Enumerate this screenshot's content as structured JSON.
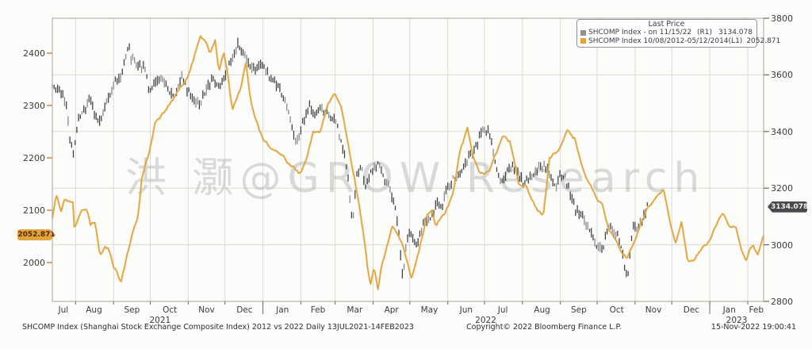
{
  "watermark": {
    "text": "洪 灏@GROW Research"
  },
  "legend": {
    "title": "Last Price",
    "series": [
      {
        "label": "SHCOMP Index - on 11/15/22",
        "axis": "(R1)",
        "value": "3134.078",
        "swatch": "#8f8f96"
      },
      {
        "label": "SHCOMP Index 10/08/2012-05/12/2014",
        "axis": "(L1)",
        "value": "2052.871",
        "swatch": "#e2a33a"
      }
    ]
  },
  "axes": {
    "left": {
      "ticks": [
        "2400",
        "2300",
        "2200",
        "2100",
        "2000"
      ],
      "tick_values": [
        2400,
        2300,
        2200,
        2100,
        2000
      ],
      "badge": "2052.871",
      "badge_value": 2052.871
    },
    "right": {
      "ticks": [
        "3800",
        "3600",
        "3400",
        "3200",
        "3000",
        "2800"
      ],
      "tick_values": [
        3800,
        3600,
        3400,
        3200,
        3000,
        2800
      ],
      "badge": "3134.078",
      "badge_value": 3134.078
    },
    "x": {
      "month_labels": [
        {
          "label": "Jul",
          "t": 9
        },
        {
          "label": "Aug",
          "t": 34
        },
        {
          "label": "Sep",
          "t": 65
        },
        {
          "label": "Oct",
          "t": 96
        },
        {
          "label": "Nov",
          "t": 126
        },
        {
          "label": "Dec",
          "t": 157
        },
        {
          "label": "Jan",
          "t": 188
        },
        {
          "label": "Feb",
          "t": 217
        },
        {
          "label": "Mar",
          "t": 247
        },
        {
          "label": "Apr",
          "t": 277
        },
        {
          "label": "May",
          "t": 308
        },
        {
          "label": "Jun",
          "t": 338
        },
        {
          "label": "Jul",
          "t": 368
        },
        {
          "label": "Aug",
          "t": 400
        },
        {
          "label": "Sep",
          "t": 430
        },
        {
          "label": "Oct",
          "t": 461
        },
        {
          "label": "Nov",
          "t": 491
        },
        {
          "label": "Dec",
          "t": 522
        },
        {
          "label": "Jan",
          "t": 553
        },
        {
          "label": "Feb",
          "t": 575
        }
      ],
      "year_labels": [
        {
          "label": "2021",
          "t": 88
        },
        {
          "label": "2022",
          "t": 354
        },
        {
          "label": "2023",
          "t": 559
        }
      ],
      "year_separators": [
        172,
        537
      ],
      "month_ticks": [
        19,
        50,
        80,
        111,
        141,
        172,
        203,
        231,
        262,
        292,
        323,
        353,
        384,
        415,
        445,
        476,
        506,
        537,
        568
      ]
    }
  },
  "footer": {
    "left": "SHCOMP Index (Shanghai Stock Exchange Composite Index) 2012 vs 2022  Daily 13JUL2021-14FEB2023",
    "copyright": "Copyright© 2022 Bloomberg Finance L.P.",
    "datetime": "15-Nov-2022 19:00:41"
  },
  "colors": {
    "grid": "#dadad6",
    "border": "#a3a3a0",
    "axis_tick": "#6b6b68",
    "left_tick": "#c8862e",
    "series_2022": "#3d3d42",
    "series_2022_light": "#86868c",
    "series_2012": "#dda23c",
    "series_2012_halo": "#f0c777",
    "watermark": "#a9a9a9"
  },
  "chart_data": {
    "type": "line",
    "title": "SHCOMP Index (Shanghai Stock Exchange Composite Index) 2012 vs 2022",
    "x_axis": {
      "start": "13JUL2021",
      "end": "14FEB2023",
      "total_days": 581
    },
    "right_axis": {
      "range": [
        2800,
        3800
      ],
      "ticks": [
        2800,
        3000,
        3200,
        3400,
        3600,
        3800
      ]
    },
    "left_axis": {
      "range": [
        1925.8,
        2466.7
      ],
      "ticks": [
        2000,
        2100,
        2200,
        2300,
        2400
      ]
    },
    "series": [
      {
        "name": "SHCOMP Index - on 11/15/22",
        "axis": "R1",
        "style": "ohlc_bars",
        "last_price": 3134.078,
        "end_day": 486,
        "points": [
          [
            0,
            3566
          ],
          [
            8,
            3540
          ],
          [
            12,
            3480
          ],
          [
            14,
            3381
          ],
          [
            15,
            3362
          ],
          [
            17,
            3320
          ],
          [
            21,
            3447
          ],
          [
            27,
            3477
          ],
          [
            31,
            3522
          ],
          [
            35,
            3446
          ],
          [
            38,
            3427
          ],
          [
            45,
            3510
          ],
          [
            50,
            3567
          ],
          [
            55,
            3581
          ],
          [
            60,
            3662
          ],
          [
            62,
            3715
          ],
          [
            64,
            3662
          ],
          [
            70,
            3642
          ],
          [
            76,
            3613
          ],
          [
            79,
            3536
          ],
          [
            87,
            3592
          ],
          [
            93,
            3562
          ],
          [
            100,
            3518
          ],
          [
            106,
            3597
          ],
          [
            110,
            3544
          ],
          [
            116,
            3520
          ],
          [
            120,
            3492
          ],
          [
            127,
            3560
          ],
          [
            131,
            3589
          ],
          [
            137,
            3564
          ],
          [
            140,
            3576
          ],
          [
            145,
            3637
          ],
          [
            152,
            3708
          ],
          [
            157,
            3666
          ],
          [
            162,
            3618
          ],
          [
            168,
            3632
          ],
          [
            171,
            3639
          ],
          [
            177,
            3595
          ],
          [
            183,
            3569
          ],
          [
            189,
            3522
          ],
          [
            195,
            3433
          ],
          [
            199,
            3361
          ],
          [
            204,
            3422
          ],
          [
            210,
            3486
          ],
          [
            214,
            3462
          ],
          [
            218,
            3490
          ],
          [
            223,
            3462
          ],
          [
            228,
            3451
          ],
          [
            232,
            3447
          ],
          [
            235,
            3372
          ],
          [
            239,
            3310
          ],
          [
            242,
            3224
          ],
          [
            245,
            3064
          ],
          [
            247,
            3170
          ],
          [
            249,
            3251
          ],
          [
            252,
            3271
          ],
          [
            256,
            3214
          ],
          [
            260,
            3252
          ],
          [
            266,
            3283
          ],
          [
            271,
            3237
          ],
          [
            275,
            3211
          ],
          [
            279,
            3150
          ],
          [
            282,
            3087
          ],
          [
            286,
            2886
          ],
          [
            288,
            2958
          ],
          [
            291,
            3047
          ],
          [
            294,
            3030
          ],
          [
            298,
            3002
          ],
          [
            303,
            3084
          ],
          [
            308,
            3074
          ],
          [
            313,
            3146
          ],
          [
            318,
            3130
          ],
          [
            322,
            3186
          ],
          [
            327,
            3236
          ],
          [
            332,
            3242
          ],
          [
            337,
            3285
          ],
          [
            342,
            3317
          ],
          [
            347,
            3362
          ],
          [
            351,
            3409
          ],
          [
            356,
            3405
          ],
          [
            359,
            3356
          ],
          [
            362,
            3284
          ],
          [
            366,
            3228
          ],
          [
            371,
            3250
          ],
          [
            376,
            3283
          ],
          [
            380,
            3259
          ],
          [
            384,
            3220
          ],
          [
            389,
            3236
          ],
          [
            394,
            3254
          ],
          [
            398,
            3277
          ],
          [
            403,
            3276
          ],
          [
            408,
            3230
          ],
          [
            411,
            3202
          ],
          [
            415,
            3244
          ],
          [
            419,
            3236
          ],
          [
            423,
            3185
          ],
          [
            427,
            3126
          ],
          [
            430,
            3110
          ],
          [
            434,
            3088
          ],
          [
            438,
            3061
          ],
          [
            441,
            3024
          ],
          [
            445,
            3001
          ],
          [
            449,
            2974
          ],
          [
            452,
            3032
          ],
          [
            454,
            3072
          ],
          [
            458,
            3044
          ],
          [
            461,
            3038
          ],
          [
            465,
            2976
          ],
          [
            468,
            2915
          ],
          [
            470,
            2893
          ],
          [
            472,
            2969
          ],
          [
            474,
            3070
          ],
          [
            478,
            3054
          ],
          [
            481,
            3087
          ],
          [
            484,
            3102
          ],
          [
            486,
            3134
          ]
        ]
      },
      {
        "name": "SHCOMP Index 10/08/2012-05/12/2014",
        "axis": "L1",
        "style": "line",
        "last_price": 2052.871,
        "end_day": 581,
        "points": [
          [
            0,
            2086
          ],
          [
            3,
            2132
          ],
          [
            7,
            2098
          ],
          [
            10,
            2125
          ],
          [
            14,
            2114
          ],
          [
            17,
            2116
          ],
          [
            18,
            2066
          ],
          [
            24,
            2104
          ],
          [
            28,
            2106
          ],
          [
            31,
            2071
          ],
          [
            35,
            2079
          ],
          [
            39,
            2014
          ],
          [
            43,
            2030
          ],
          [
            46,
            2027
          ],
          [
            50,
            1991
          ],
          [
            53,
            1980
          ],
          [
            56,
            1960
          ],
          [
            61,
            2014
          ],
          [
            66,
            2061
          ],
          [
            70,
            2090
          ],
          [
            73,
            2162
          ],
          [
            79,
            2210
          ],
          [
            84,
            2269
          ],
          [
            91,
            2285
          ],
          [
            98,
            2311
          ],
          [
            106,
            2340
          ],
          [
            112,
            2360
          ],
          [
            115,
            2385
          ],
          [
            121,
            2434
          ],
          [
            125,
            2420
          ],
          [
            129,
            2398
          ],
          [
            133,
            2421
          ],
          [
            136,
            2360
          ],
          [
            140,
            2402
          ],
          [
            143,
            2366
          ],
          [
            147,
            2290
          ],
          [
            154,
            2330
          ],
          [
            158,
            2378
          ],
          [
            162,
            2310
          ],
          [
            167,
            2270
          ],
          [
            172,
            2236
          ],
          [
            178,
            2222
          ],
          [
            184,
            2212
          ],
          [
            191,
            2195
          ],
          [
            197,
            2182
          ],
          [
            203,
            2170
          ],
          [
            208,
            2200
          ],
          [
            213,
            2246
          ],
          [
            219,
            2251
          ],
          [
            225,
            2300
          ],
          [
            231,
            2324
          ],
          [
            236,
            2299
          ],
          [
            240,
            2250
          ],
          [
            245,
            2180
          ],
          [
            250,
            2120
          ],
          [
            255,
            2040
          ],
          [
            258,
            1980
          ],
          [
            260,
            1959
          ],
          [
            263,
            1990
          ],
          [
            266,
            1951
          ],
          [
            269,
            1995
          ],
          [
            274,
            2040
          ],
          [
            278,
            2072
          ],
          [
            283,
            2050
          ],
          [
            288,
            2020
          ],
          [
            293,
            1970
          ],
          [
            296,
            1990
          ],
          [
            300,
            2029
          ],
          [
            306,
            2090
          ],
          [
            310,
            2101
          ],
          [
            313,
            2068
          ],
          [
            317,
            2085
          ],
          [
            321,
            2098
          ],
          [
            327,
            2130
          ],
          [
            333,
            2212
          ],
          [
            339,
            2255
          ],
          [
            344,
            2200
          ],
          [
            350,
            2170
          ],
          [
            357,
            2175
          ],
          [
            363,
            2211
          ],
          [
            368,
            2237
          ],
          [
            374,
            2229
          ],
          [
            381,
            2150
          ],
          [
            387,
            2149
          ],
          [
            394,
            2110
          ],
          [
            401,
            2087
          ],
          [
            406,
            2197
          ],
          [
            409,
            2206
          ],
          [
            415,
            2220
          ],
          [
            421,
            2251
          ],
          [
            427,
            2237
          ],
          [
            433,
            2180
          ],
          [
            439,
            2151
          ],
          [
            445,
            2120
          ],
          [
            449,
            2116
          ],
          [
            455,
            2060
          ],
          [
            460,
            2045
          ],
          [
            466,
            2013
          ],
          [
            470,
            2008
          ],
          [
            474,
            2033
          ],
          [
            480,
            2070
          ],
          [
            486,
            2104
          ],
          [
            492,
            2125
          ],
          [
            499,
            2143
          ],
          [
            504,
            2080
          ],
          [
            509,
            2034
          ],
          [
            514,
            2075
          ],
          [
            519,
            1999
          ],
          [
            523,
            2000
          ],
          [
            528,
            2021
          ],
          [
            534,
            2033
          ],
          [
            540,
            2060
          ],
          [
            548,
            2098
          ],
          [
            553,
            2065
          ],
          [
            558,
            2072
          ],
          [
            564,
            2020
          ],
          [
            567,
            2003
          ],
          [
            570,
            2026
          ],
          [
            573,
            2028
          ],
          [
            576,
            2011
          ],
          [
            581,
            2053
          ]
        ]
      }
    ]
  }
}
